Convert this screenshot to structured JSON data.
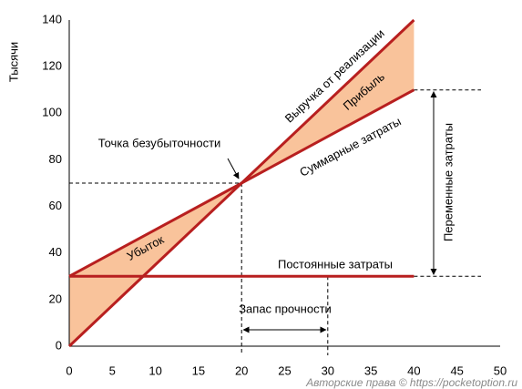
{
  "chart_data": {
    "type": "breakeven",
    "y_label": "Тысячи",
    "x": [
      0,
      40
    ],
    "series": [
      {
        "name": "Выручка от реализации",
        "color": "#b81f1f",
        "values": [
          0,
          140
        ]
      },
      {
        "name": "Суммарные затраты",
        "color": "#b81f1f",
        "values": [
          30,
          110
        ]
      },
      {
        "name": "Постоянные затраты",
        "color": "#b81f1f",
        "values": [
          30,
          30
        ]
      }
    ],
    "fill_color": "#f9c39b",
    "break_even": {
      "label": "Точка безубыточности",
      "x": 20,
      "y": 70
    },
    "profit_label": "Прибыль",
    "loss_label": "Убыток",
    "safety_margin": {
      "label": "Запас прочности",
      "from": 20,
      "to": 30
    },
    "variable_costs": {
      "label": "Переменные затраты",
      "from": 30,
      "to": 110
    },
    "xlim": [
      0,
      50
    ],
    "xticks": [
      0,
      5,
      10,
      15,
      20,
      25,
      30,
      35,
      40,
      45,
      50
    ],
    "ylim": [
      0,
      140
    ],
    "yticks": [
      0,
      20,
      40,
      60,
      80,
      100,
      120,
      140
    ],
    "watermark": "Авторские права © https://pocketoption.ru"
  }
}
